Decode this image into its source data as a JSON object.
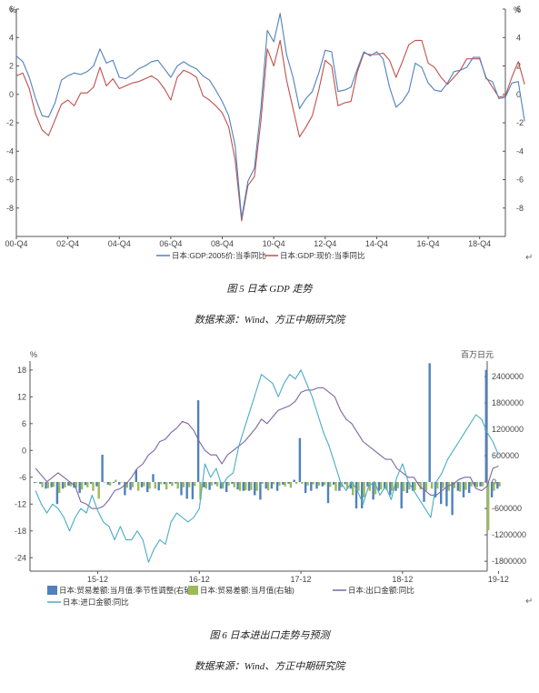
{
  "colors": {
    "blue": "#4F81BD",
    "red": "#C0504D",
    "green": "#9BBB59",
    "purple": "#8064A2",
    "cyan": "#4BACC6",
    "axis": "#555555"
  },
  "figure1": {
    "caption": "图  5   日本 GDP 走势",
    "source": "数据来源：Wind、方正中期研究院",
    "return_mark": "↵"
  },
  "figure2": {
    "caption": "图  6    日本进出口走势与预测",
    "source": "数据来源：Wind、方正中期研究院",
    "return_mark": "↵"
  },
  "chart_data": [
    {
      "type": "line",
      "left_unit": "%",
      "right_unit": "%",
      "ylim": [
        -10,
        6
      ],
      "yticks": [
        6,
        4,
        2,
        0,
        -2,
        -4,
        -6,
        -8
      ],
      "xlim": [
        0,
        76
      ],
      "xticks": [
        {
          "i": 0,
          "label": "00-Q4"
        },
        {
          "i": 8,
          "label": "02-Q4"
        },
        {
          "i": 16,
          "label": "04-Q4"
        },
        {
          "i": 24,
          "label": "06-Q4"
        },
        {
          "i": 32,
          "label": "08-Q4"
        },
        {
          "i": 40,
          "label": "10-Q4"
        },
        {
          "i": 48,
          "label": "12-Q4"
        },
        {
          "i": 56,
          "label": "14-Q4"
        },
        {
          "i": 64,
          "label": "16-Q4"
        },
        {
          "i": 72,
          "label": "18-Q4"
        }
      ],
      "legend": [
        "日本:GDP:2005价:当季同比",
        "日本:GDP:现价:当季同比"
      ],
      "series": [
        {
          "name": "日本:GDP:2005价:当季同比",
          "color_key": "blue",
          "values": [
            2.7,
            2.3,
            1.2,
            -0.3,
            -1.5,
            -1.6,
            -0.6,
            1.0,
            1.3,
            1.5,
            1.4,
            1.6,
            2.0,
            3.2,
            2.2,
            2.4,
            1.2,
            1.1,
            1.4,
            1.8,
            2.0,
            2.3,
            2.4,
            1.8,
            1.2,
            2.0,
            2.3,
            2.0,
            1.8,
            1.3,
            1.0,
            0.3,
            -0.5,
            -1.5,
            -3.6,
            -8.7,
            -6.1,
            -5.2,
            -1.0,
            4.5,
            3.7,
            5.7,
            2.8,
            1.2,
            -1.0,
            -0.3,
            0.2,
            1.5,
            3.1,
            3.0,
            0.2,
            0.3,
            0.5,
            1.8,
            3.0,
            2.7,
            3.0,
            2.5,
            0.5,
            -0.9,
            -0.5,
            0.2,
            2.2,
            1.9,
            0.8,
            0.3,
            0.2,
            0.8,
            1.6,
            1.7,
            1.9,
            2.6,
            2.6,
            1.1,
            0.9,
            -0.3,
            -0.2,
            0.8,
            0.9,
            -1.9
          ]
        },
        {
          "name": "日本:GDP:现价:当季同比",
          "color_key": "red",
          "values": [
            1.3,
            1.5,
            0.4,
            -1.4,
            -2.5,
            -2.9,
            -1.8,
            -0.7,
            -0.4,
            -0.8,
            0.1,
            0.1,
            0.5,
            1.9,
            0.6,
            1.1,
            0.4,
            0.6,
            0.8,
            0.9,
            1.1,
            1.3,
            1.0,
            0.4,
            -0.4,
            1.2,
            1.7,
            1.5,
            1.2,
            -0.1,
            -0.4,
            -0.8,
            -1.3,
            -2.3,
            -4.6,
            -8.9,
            -6.4,
            -5.8,
            -1.9,
            3.2,
            2.0,
            3.8,
            1.0,
            -1.0,
            -3.0,
            -2.3,
            -1.5,
            0.3,
            2.4,
            2.0,
            -0.8,
            -0.6,
            -0.5,
            1.6,
            2.9,
            2.8,
            2.8,
            2.9,
            2.4,
            1.2,
            2.3,
            3.5,
            3.8,
            3.8,
            2.2,
            1.9,
            1.2,
            0.7,
            1.2,
            1.7,
            2.5,
            2.5,
            2.5,
            1.2,
            0.5,
            -0.2,
            -0.1,
            1.2,
            2.3,
            0.7
          ]
        }
      ]
    },
    {
      "type": "bar+line",
      "left_unit": "%",
      "right_unit": "百万日元",
      "left_ylim": [
        -27,
        20
      ],
      "left_ticks": [
        18,
        12,
        6,
        0,
        -6,
        -12,
        -18,
        -24
      ],
      "right_ylim": [
        -2025000,
        2750000
      ],
      "right_ticks": [
        2400000,
        1800000,
        1200000,
        600000,
        0,
        -600000,
        -1200000,
        -1800000
      ],
      "xlim": [
        -1,
        80
      ],
      "xticks": [
        {
          "i": 11,
          "label": "15-12"
        },
        {
          "i": 29,
          "label": "16-12"
        },
        {
          "i": 47,
          "label": "17-12"
        },
        {
          "i": 65,
          "label": "18-12"
        },
        {
          "i": 82,
          "label": "19-12"
        }
      ],
      "legend": [
        "日本:贸易差额:当月值:季节性调整(右轴)",
        "日本:贸易差额:当月值(右轴)",
        "日本:出口金额:同比",
        "日本:进口金额:同比"
      ],
      "bars": [
        {
          "name": "日本:贸易差额:当月值:季节性调整(右轴)",
          "color_key": "blue",
          "values": [
            -20000,
            -40000,
            -150000,
            -120000,
            -500000,
            -150000,
            -80000,
            -130000,
            -250000,
            -70000,
            -40000,
            -100000,
            620000,
            -60000,
            -20000,
            -60000,
            -300000,
            -180000,
            280000,
            -120000,
            -230000,
            180000,
            -190000,
            -50000,
            -40000,
            -30000,
            -300000,
            -380000,
            -390000,
            1860000,
            -120000,
            -180000,
            -50000,
            -150000,
            -230000,
            -40000,
            -170000,
            -200000,
            -200000,
            -300000,
            -400000,
            -150000,
            -150000,
            -200000,
            -60000,
            -40000,
            50000,
            1000000,
            -250000,
            -200000,
            -150000,
            -100000,
            -480000,
            -60000,
            -200000,
            -50000,
            -150000,
            -600000,
            -600000,
            -100000,
            -400000,
            -200000,
            -150000,
            -300000,
            -200000,
            -600000,
            -250000,
            -200000,
            -30000,
            -450000,
            2700000,
            -350000,
            -500000,
            -550000,
            -750000,
            -200000,
            -350000,
            -250000,
            -100000,
            -100000,
            2550000,
            -350000,
            -150000
          ]
        },
        {
          "name": "日本:贸易差额:当月值(右轴)",
          "color_key": "green",
          "values": [
            0,
            -120000,
            -140000,
            -110000,
            -250000,
            -120000,
            -100000,
            -130000,
            -170000,
            -120000,
            -200000,
            -380000,
            0,
            -80000,
            50000,
            0,
            -130000,
            -120000,
            -200000,
            -100000,
            -150000,
            -150000,
            -50000,
            -170000,
            -90000,
            -150000,
            -120000,
            -120000,
            -90000,
            -400000,
            -150000,
            -80000,
            -100000,
            -150000,
            -80000,
            -120000,
            -200000,
            -190000,
            -180000,
            -200000,
            -40000,
            -190000,
            -50000,
            -80000,
            -100000,
            -130000,
            -40000,
            -40000,
            -80000,
            -50000,
            -80000,
            -70000,
            -110000,
            -200000,
            -120000,
            -160000,
            -300000,
            -200000,
            -350000,
            -200000,
            -280000,
            -170000,
            -180000,
            -200000,
            -140000,
            -210000,
            -170000,
            -190000,
            -170000,
            -200000,
            -150000,
            -150000,
            -140000,
            -200000,
            -140000,
            -220000,
            -180000,
            -100000,
            -120000,
            -100000,
            -1100000,
            -200000,
            -100000
          ]
        }
      ],
      "lines": [
        {
          "name": "日本:出口金额:同比",
          "color_key": "purple",
          "values": [
            -4,
            -5.5,
            -7,
            -6,
            -5,
            -6,
            -7,
            -8,
            -11.5,
            -12,
            -13,
            -13,
            -12.5,
            -11,
            -9,
            -8.5,
            -7.5,
            -6,
            -4,
            -3,
            -1,
            0,
            2,
            2.5,
            4,
            5,
            6.5,
            6,
            4.5,
            2,
            0,
            -1,
            -1,
            -3,
            -1,
            0,
            1,
            2,
            3.5,
            5,
            7,
            6,
            7.5,
            9,
            9.5,
            10,
            11,
            13,
            13.5,
            13.5,
            14,
            14,
            13,
            12,
            9,
            7,
            6,
            4,
            2,
            1,
            0,
            -1,
            -2,
            -2,
            -4,
            -5,
            -6,
            -6,
            -8,
            -9,
            -10,
            -10,
            -9,
            -8,
            -7.5,
            -6.5,
            -6,
            -6,
            -8.5,
            -9,
            -8,
            -4,
            -3.5
          ]
        },
        {
          "name": "日本:进口金额:同比",
          "color_key": "cyan",
          "values": [
            -9,
            -12,
            -14,
            -12,
            -13,
            -15,
            -18,
            -15,
            -13,
            -14,
            -10,
            -13.5,
            -16,
            -17,
            -20,
            -17,
            -20,
            -20,
            -18,
            -20,
            -25,
            -22,
            -20,
            -21,
            -16,
            -14,
            -15,
            -16,
            -15,
            -13,
            -3,
            -6,
            -4,
            -8,
            -6,
            -5,
            1,
            5,
            9,
            13,
            17,
            16,
            15,
            12,
            15,
            17,
            16,
            18,
            15,
            12,
            8,
            4,
            1,
            -3,
            -7,
            -9,
            -7,
            -9,
            -12,
            -8,
            -7,
            -10,
            -8,
            -11,
            -6,
            -3,
            -7,
            -9,
            -11,
            -13,
            -15,
            -7,
            -5,
            -2,
            0,
            2,
            4,
            6,
            8,
            7,
            4,
            2,
            -1
          ]
        }
      ]
    }
  ]
}
